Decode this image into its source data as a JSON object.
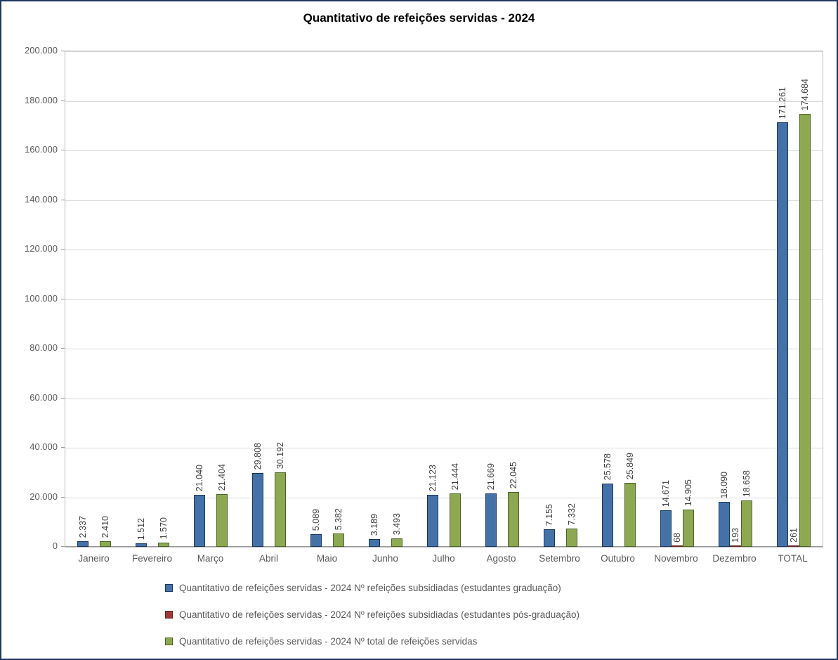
{
  "chart_data": {
    "type": "bar",
    "title": "Quantitativo de refeições servidas - 2024",
    "categories": [
      "Janeiro",
      "Fevereiro",
      "Março",
      "Abril",
      "Maio",
      "Junho",
      "Julho",
      "Agosto",
      "Setembro",
      "Outubro",
      "Novembro",
      "Dezembro",
      "TOTAL"
    ],
    "series": [
      {
        "name": "Quantitativo de refeições servidas - 2024 Nº refeições subsidiadas (estudantes graduação)",
        "color": "#4472a8",
        "border_color": "#17375e",
        "values": [
          2337,
          1512,
          21040,
          29808,
          5089,
          3189,
          21123,
          21669,
          7155,
          25578,
          14671,
          18090,
          171261
        ],
        "labels": [
          "2.337",
          "1.512",
          "21.040",
          "29.808",
          "5.089",
          "3.189",
          "21.123",
          "21.669",
          "7.155",
          "25.578",
          "14.671",
          "18.090",
          "171.261"
        ]
      },
      {
        "name": "Quantitativo de refeições servidas - 2024 Nº refeições subsidiadas (estudantes pós-graduação)",
        "color": "#9e3b3a",
        "border_color": "#632523",
        "values": [
          0,
          0,
          0,
          0,
          0,
          0,
          0,
          0,
          0,
          0,
          68,
          193,
          261
        ],
        "labels": [
          "",
          "",
          "",
          "",
          "",
          "",
          "",
          "",
          "",
          "",
          "68",
          "193",
          "261"
        ]
      },
      {
        "name": "Quantitativo de refeições servidas - 2024 Nº total de refeições servidas",
        "color": "#8ca951",
        "border_color": "#4f6228",
        "values": [
          2410,
          1570,
          21404,
          30192,
          5382,
          3493,
          21444,
          22045,
          7332,
          25849,
          14905,
          18658,
          174684
        ],
        "labels": [
          "2.410",
          "1.570",
          "21.404",
          "30.192",
          "5.382",
          "3.493",
          "21.444",
          "22.045",
          "7.332",
          "25.849",
          "14.905",
          "18.658",
          "174.684"
        ]
      }
    ],
    "ylim": [
      0,
      200000
    ],
    "ytick_step": 20000,
    "ytick_labels": [
      "0",
      "20.000",
      "40.000",
      "60.000",
      "80.000",
      "100.000",
      "120.000",
      "140.000",
      "160.000",
      "180.000",
      "200.000"
    ],
    "grid": true,
    "legend_position": "bottom-left",
    "data_label_rotation": 90
  }
}
